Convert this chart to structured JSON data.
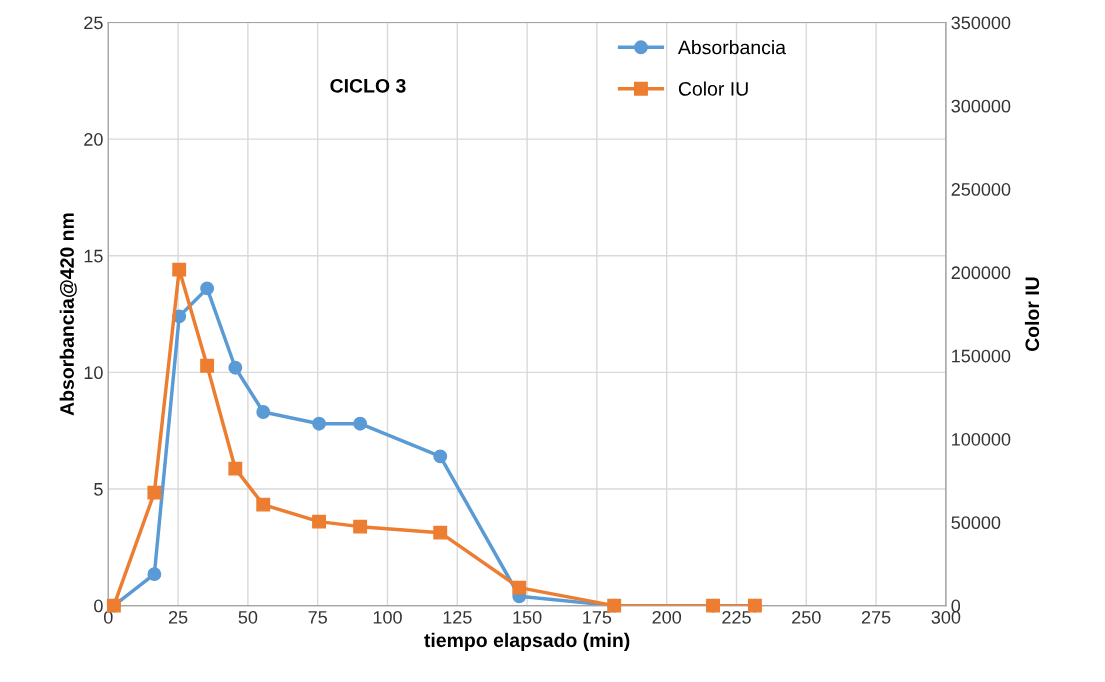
{
  "chart_data": {
    "type": "line",
    "annotations": [
      "CICLO 3"
    ],
    "xlabel": "tiempo elapsado (min)",
    "ylabel": "Absorbancia@420 nm",
    "y2label": "Color IU",
    "xlim": [
      0,
      300
    ],
    "xticks": [
      0,
      25,
      50,
      75,
      100,
      125,
      150,
      175,
      200,
      225,
      250,
      275,
      300
    ],
    "ylim": [
      0,
      25
    ],
    "yticks": [
      0,
      5,
      10,
      15,
      20,
      25
    ],
    "y2lim": [
      0,
      350000
    ],
    "y2ticks": [
      0,
      50000,
      100000,
      150000,
      200000,
      250000,
      300000,
      350000
    ],
    "grid": true,
    "legend": "top right",
    "line_style": "solid",
    "series": [
      {
        "name": "Absorbancia",
        "color": "#5b9bd5",
        "marker": "circle",
        "x": [
          2,
          16.5,
          25.4,
          35.4,
          45.5,
          55.5,
          75.5,
          90.2,
          118.9,
          147.2,
          181.2,
          216.6,
          231.6
        ],
        "values": [
          0,
          1.35,
          12.4,
          13.6,
          10.2,
          8.3,
          7.8,
          7.8,
          6.4,
          0.4,
          0,
          0,
          0
        ]
      },
      {
        "name": "Color IU",
        "color": "#ed7d31",
        "marker": "square",
        "axis": "y2",
        "x": [
          2,
          16.5,
          25.4,
          35.4,
          45.5,
          55.5,
          75.5,
          90.2,
          118.9,
          147.2,
          181.2,
          216.6,
          231.6
        ],
        "values": [
          0,
          67800,
          201700,
          144000,
          82200,
          60600,
          50400,
          47400,
          43800,
          10800,
          0,
          0,
          0
        ]
      }
    ]
  }
}
